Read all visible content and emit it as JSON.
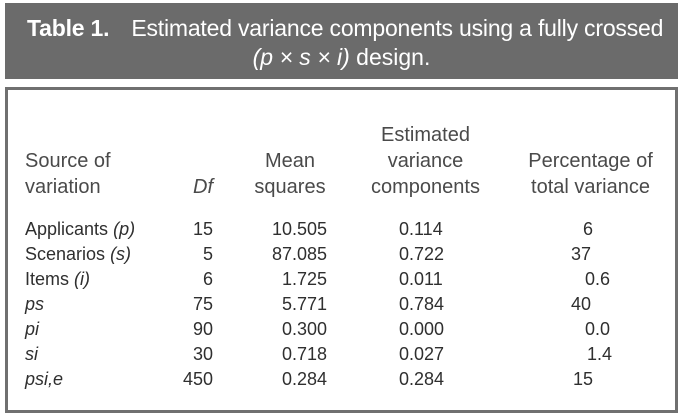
{
  "caption": {
    "label": "Table 1.",
    "title_part1": "Estimated variance components using a fully crossed",
    "design_formula": "(p × s × i)",
    "design_suffix": " design."
  },
  "table": {
    "headers": {
      "source": [
        "Source of",
        "variation"
      ],
      "df": "Df",
      "mean_squares": [
        "Mean",
        "squares"
      ],
      "estimated": [
        "Estimated",
        "variance",
        "components"
      ],
      "percentage": [
        "Percentage of",
        "total variance"
      ]
    },
    "rows": [
      {
        "source": "Applicants",
        "source_symbol": "(p)",
        "df": "15",
        "ms": "10.505",
        "evc": "0.114",
        "pct": "6"
      },
      {
        "source": "Scenarios",
        "source_symbol": "(s)",
        "df": "5",
        "ms": "87.085",
        "evc": "0.722",
        "pct": "37"
      },
      {
        "source": "Items",
        "source_symbol": "(i)",
        "df": "6",
        "ms": "1.725",
        "evc": "0.011",
        "pct": "0.6"
      },
      {
        "source": "",
        "source_symbol": "ps",
        "df": "75",
        "ms": "5.771",
        "evc": "0.784",
        "pct": "40"
      },
      {
        "source": "",
        "source_symbol": "pi",
        "df": "90",
        "ms": "0.300",
        "evc": "0.000",
        "pct": "0.0"
      },
      {
        "source": "",
        "source_symbol": "si",
        "df": "30",
        "ms": "0.718",
        "evc": "0.027",
        "pct": "1.4"
      },
      {
        "source": "",
        "source_symbol": "psi,e",
        "df": "450",
        "ms": "0.284",
        "evc": "0.284",
        "pct": "15"
      }
    ]
  }
}
